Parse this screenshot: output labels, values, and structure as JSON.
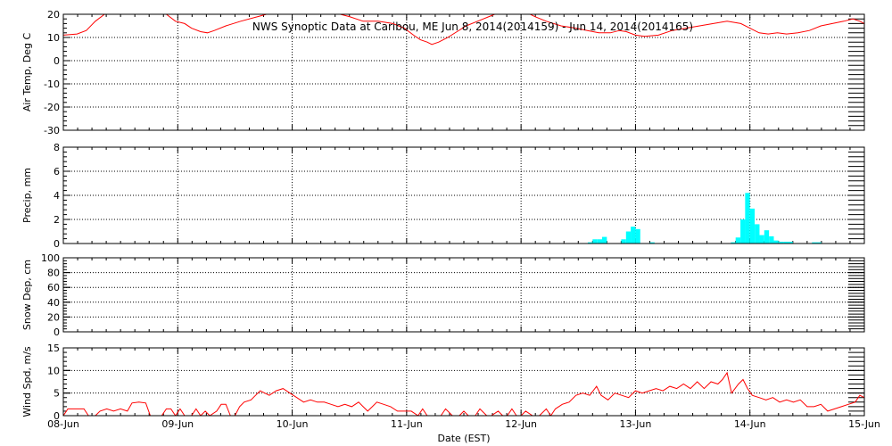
{
  "chart_data": {
    "type": "line",
    "title": "NWS Synoptic Data at Caribou, ME   Jun  8, 2014(2014159) - Jun 14, 2014(2014165)",
    "xlabel": "Date (EST)",
    "x_ticks": [
      "08-Jun",
      "09-Jun",
      "10-Jun",
      "11-Jun",
      "12-Jun",
      "13-Jun",
      "14-Jun",
      "15-Jun"
    ],
    "xlim": [
      0,
      7
    ],
    "panels": [
      {
        "name": "air-temp",
        "type": "line",
        "ylabel": "Air Temp, Deg C",
        "ylim": [
          -30,
          20
        ],
        "yticks": [
          -30,
          -20,
          -10,
          0,
          10,
          20
        ],
        "series": [
          {
            "color": "#ff0000",
            "points": [
              [
                0.0,
                11
              ],
              [
                0.12,
                11.5
              ],
              [
                0.2,
                13
              ],
              [
                0.28,
                17
              ],
              [
                0.36,
                20
              ],
              [
                0.5,
                22
              ],
              [
                0.7,
                24
              ],
              [
                0.82,
                22
              ],
              [
                0.9,
                20
              ],
              [
                0.98,
                17
              ],
              [
                1.06,
                16
              ],
              [
                1.12,
                14
              ],
              [
                1.2,
                12.5
              ],
              [
                1.26,
                12
              ],
              [
                1.32,
                13
              ],
              [
                1.42,
                15
              ],
              [
                1.55,
                17
              ],
              [
                1.7,
                19
              ],
              [
                1.85,
                21
              ],
              [
                2.0,
                22
              ],
              [
                2.15,
                23
              ],
              [
                2.3,
                22
              ],
              [
                2.42,
                20
              ],
              [
                2.5,
                19
              ],
              [
                2.62,
                17
              ],
              [
                2.75,
                17
              ],
              [
                2.88,
                16
              ],
              [
                2.98,
                14
              ],
              [
                3.06,
                11
              ],
              [
                3.12,
                9
              ],
              [
                3.18,
                8
              ],
              [
                3.22,
                7
              ],
              [
                3.28,
                8
              ],
              [
                3.36,
                10
              ],
              [
                3.44,
                12.5
              ],
              [
                3.52,
                15
              ],
              [
                3.62,
                17
              ],
              [
                3.72,
                19
              ],
              [
                3.82,
                21
              ],
              [
                3.92,
                22
              ],
              [
                4.0,
                22
              ],
              [
                4.12,
                19
              ],
              [
                4.22,
                17
              ],
              [
                4.35,
                15
              ],
              [
                4.48,
                14
              ],
              [
                4.58,
                13
              ],
              [
                4.68,
                12
              ],
              [
                4.78,
                12
              ],
              [
                4.86,
                13
              ],
              [
                4.92,
                12.5
              ],
              [
                5.0,
                11
              ],
              [
                5.08,
                10.5
              ],
              [
                5.2,
                11
              ],
              [
                5.32,
                13
              ],
              [
                5.44,
                14
              ],
              [
                5.56,
                15
              ],
              [
                5.68,
                16
              ],
              [
                5.8,
                17
              ],
              [
                5.92,
                16
              ],
              [
                6.0,
                14
              ],
              [
                6.08,
                12
              ],
              [
                6.16,
                11.5
              ],
              [
                6.24,
                12
              ],
              [
                6.32,
                11.5
              ],
              [
                6.42,
                12
              ],
              [
                6.52,
                13
              ],
              [
                6.62,
                15
              ],
              [
                6.72,
                16
              ],
              [
                6.82,
                17
              ],
              [
                6.9,
                18
              ],
              [
                6.96,
                17
              ],
              [
                7.0,
                16
              ]
            ]
          }
        ]
      },
      {
        "name": "precip",
        "type": "bar",
        "ylabel": "Precip, mm",
        "ylim": [
          0,
          8
        ],
        "yticks": [
          0,
          2,
          4,
          6,
          8
        ],
        "bar_color": "#00ffff",
        "bar_width": 0.0417,
        "bars": [
          [
            4.604,
            0.1
          ],
          [
            4.646,
            0.35
          ],
          [
            4.688,
            0.35
          ],
          [
            4.729,
            0.55
          ],
          [
            4.896,
            0.35
          ],
          [
            4.938,
            1.0
          ],
          [
            4.979,
            1.4
          ],
          [
            5.021,
            1.2
          ],
          [
            5.146,
            0.1
          ],
          [
            5.854,
            0.1
          ],
          [
            5.896,
            0.5
          ],
          [
            5.938,
            2.0
          ],
          [
            5.979,
            4.2
          ],
          [
            6.021,
            2.9
          ],
          [
            6.063,
            1.6
          ],
          [
            6.104,
            0.7
          ],
          [
            6.146,
            1.1
          ],
          [
            6.188,
            0.6
          ],
          [
            6.229,
            0.25
          ],
          [
            6.271,
            0.15
          ],
          [
            6.313,
            0.15
          ],
          [
            6.354,
            0.15
          ],
          [
            6.563,
            0.1
          ],
          [
            6.604,
            0.1
          ]
        ]
      },
      {
        "name": "snow-depth",
        "type": "line",
        "ylabel": "Snow Dep, cm",
        "ylim": [
          0,
          100
        ],
        "yticks": [
          0,
          20,
          40,
          60,
          80,
          100
        ],
        "series": []
      },
      {
        "name": "wind-speed",
        "type": "line",
        "ylabel": "Wind Spd, m/s",
        "ylim": [
          0,
          15
        ],
        "yticks": [
          0,
          5,
          10,
          15
        ],
        "series": [
          {
            "color": "#ff0000",
            "points": [
              [
                0.0,
                0
              ],
              [
                0.04,
                1.5
              ],
              [
                0.12,
                1.5
              ],
              [
                0.18,
                1.5
              ],
              [
                0.22,
                0
              ],
              [
                0.28,
                0
              ],
              [
                0.32,
                1
              ],
              [
                0.38,
                1.5
              ],
              [
                0.44,
                1
              ],
              [
                0.5,
                1.5
              ],
              [
                0.56,
                1
              ],
              [
                0.6,
                2.8
              ],
              [
                0.66,
                3
              ],
              [
                0.72,
                2.8
              ],
              [
                0.76,
                0
              ],
              [
                0.82,
                0
              ],
              [
                0.86,
                0
              ],
              [
                0.9,
                1.5
              ],
              [
                0.94,
                1.5
              ],
              [
                0.98,
                0
              ],
              [
                1.02,
                1.5
              ],
              [
                1.06,
                0
              ],
              [
                1.12,
                0
              ],
              [
                1.16,
                1.5
              ],
              [
                1.2,
                0
              ],
              [
                1.24,
                1
              ],
              [
                1.28,
                0
              ],
              [
                1.34,
                1
              ],
              [
                1.38,
                2.5
              ],
              [
                1.42,
                2.5
              ],
              [
                1.46,
                0
              ],
              [
                1.5,
                0
              ],
              [
                1.54,
                2
              ],
              [
                1.58,
                3
              ],
              [
                1.64,
                3.5
              ],
              [
                1.68,
                4.5
              ],
              [
                1.72,
                5.5
              ],
              [
                1.76,
                5
              ],
              [
                1.8,
                4.5
              ],
              [
                1.86,
                5.5
              ],
              [
                1.92,
                6
              ],
              [
                1.98,
                5
              ],
              [
                2.04,
                4
              ],
              [
                2.1,
                3
              ],
              [
                2.16,
                3.5
              ],
              [
                2.22,
                3
              ],
              [
                2.28,
                3
              ],
              [
                2.34,
                2.5
              ],
              [
                2.4,
                2
              ],
              [
                2.46,
                2.5
              ],
              [
                2.52,
                2
              ],
              [
                2.58,
                3
              ],
              [
                2.62,
                2
              ],
              [
                2.66,
                1
              ],
              [
                2.7,
                2
              ],
              [
                2.74,
                3
              ],
              [
                2.8,
                2.5
              ],
              [
                2.86,
                2
              ],
              [
                2.92,
                1
              ],
              [
                2.98,
                1
              ],
              [
                3.04,
                1
              ],
              [
                3.1,
                0
              ],
              [
                3.14,
                1.5
              ],
              [
                3.18,
                0
              ],
              [
                3.24,
                0
              ],
              [
                3.3,
                0
              ],
              [
                3.34,
                1.5
              ],
              [
                3.4,
                0
              ],
              [
                3.46,
                0
              ],
              [
                3.5,
                1
              ],
              [
                3.54,
                0
              ],
              [
                3.6,
                0
              ],
              [
                3.64,
                1.5
              ],
              [
                3.7,
                0
              ],
              [
                3.74,
                0
              ],
              [
                3.8,
                1
              ],
              [
                3.84,
                0
              ],
              [
                3.88,
                0
              ],
              [
                3.92,
                1.5
              ],
              [
                3.96,
                0
              ],
              [
                4.0,
                0
              ],
              [
                4.04,
                1
              ],
              [
                4.1,
                0
              ],
              [
                4.16,
                0
              ],
              [
                4.22,
                1.5
              ],
              [
                4.26,
                0
              ],
              [
                4.3,
                1.5
              ],
              [
                4.36,
                2.5
              ],
              [
                4.42,
                3
              ],
              [
                4.48,
                4.5
              ],
              [
                4.54,
                5
              ],
              [
                4.6,
                4.5
              ],
              [
                4.66,
                6.5
              ],
              [
                4.7,
                4.5
              ],
              [
                4.76,
                3.5
              ],
              [
                4.82,
                5
              ],
              [
                4.88,
                4.5
              ],
              [
                4.94,
                4
              ],
              [
                5.0,
                5.5
              ],
              [
                5.06,
                5
              ],
              [
                5.12,
                5.5
              ],
              [
                5.18,
                6
              ],
              [
                5.24,
                5.5
              ],
              [
                5.3,
                6.5
              ],
              [
                5.36,
                6
              ],
              [
                5.42,
                7
              ],
              [
                5.48,
                6
              ],
              [
                5.54,
                7.5
              ],
              [
                5.6,
                6
              ],
              [
                5.66,
                7.5
              ],
              [
                5.72,
                7
              ],
              [
                5.76,
                8
              ],
              [
                5.8,
                9.5
              ],
              [
                5.84,
                5
              ],
              [
                5.9,
                7
              ],
              [
                5.94,
                8
              ],
              [
                5.98,
                6
              ],
              [
                6.02,
                4.5
              ],
              [
                6.08,
                4
              ],
              [
                6.14,
                3.5
              ],
              [
                6.2,
                4
              ],
              [
                6.26,
                3
              ],
              [
                6.32,
                3.5
              ],
              [
                6.38,
                3
              ],
              [
                6.44,
                3.5
              ],
              [
                6.5,
                2
              ],
              [
                6.56,
                2
              ],
              [
                6.62,
                2.5
              ],
              [
                6.68,
                1
              ],
              [
                6.74,
                1.5
              ],
              [
                6.8,
                2
              ],
              [
                6.86,
                2.5
              ],
              [
                6.92,
                3
              ],
              [
                6.96,
                4.5
              ],
              [
                7.0,
                4
              ]
            ]
          }
        ]
      }
    ]
  }
}
